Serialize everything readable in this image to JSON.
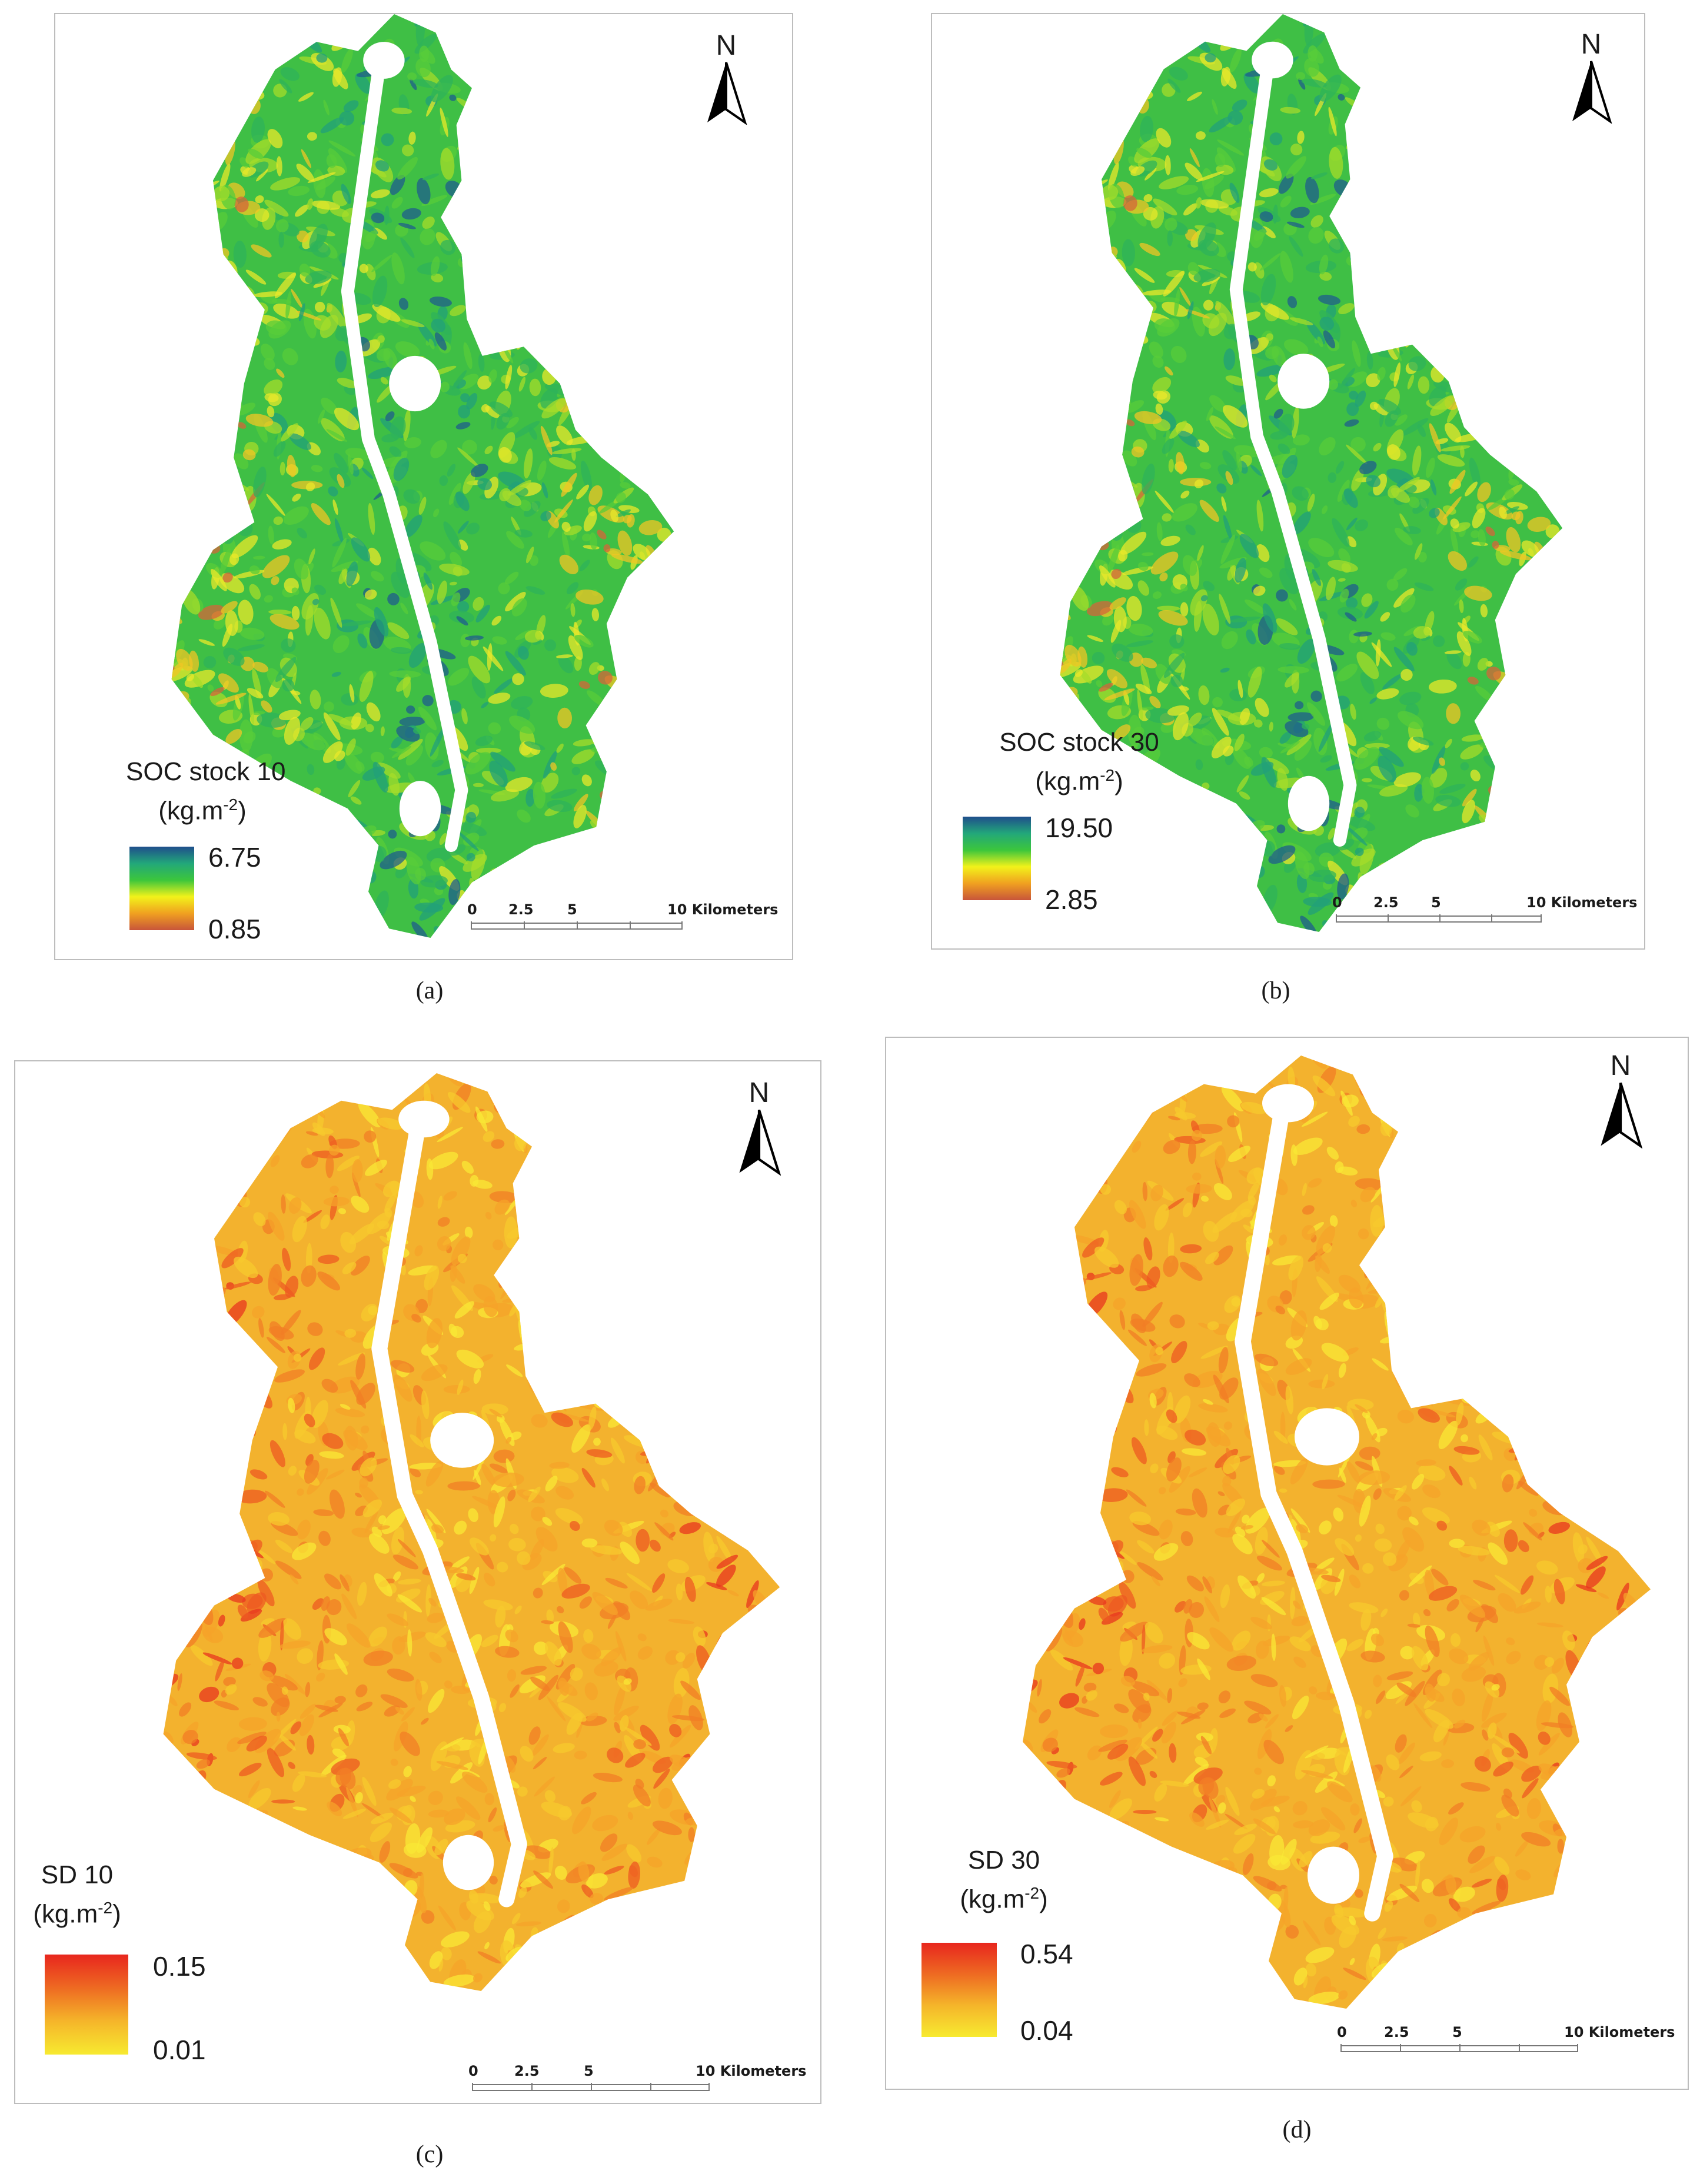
{
  "panels": [
    {
      "id": "a",
      "caption": "(a)",
      "legend": {
        "title_line1": "SOC stock 10",
        "title_unit": "(kg.m",
        "title_exp": "-2",
        "title_close": ")",
        "max": "6.75",
        "min": "0.85",
        "ramp": [
          "#1f4e8c",
          "#22a77a",
          "#3cc63c",
          "#f2f21a",
          "#f0a020",
          "#c8553a"
        ]
      },
      "north_label": "N",
      "scale": {
        "ticks": [
          "0",
          "2.5",
          "5"
        ],
        "end_label": "10 Kilometers"
      },
      "map_palette": "soc"
    },
    {
      "id": "b",
      "caption": "(b)",
      "legend": {
        "title_line1": "SOC stock 30",
        "title_unit": "(kg.m",
        "title_exp": "-2",
        "title_close": ")",
        "max": "19.50",
        "min": "2.85",
        "ramp": [
          "#1f4e8c",
          "#22a77a",
          "#3cc63c",
          "#f2f21a",
          "#f0a020",
          "#c8553a"
        ]
      },
      "north_label": "N",
      "scale": {
        "ticks": [
          "0",
          "2.5",
          "5"
        ],
        "end_label": "10 Kilometers"
      },
      "map_palette": "soc"
    },
    {
      "id": "c",
      "caption": "(c)",
      "legend": {
        "title_line1": "SD 10",
        "title_unit": "(kg.m",
        "title_exp": "-2",
        "title_close": ")",
        "max": "0.15",
        "min": "0.01",
        "ramp": [
          "#e8261e",
          "#ee6a22",
          "#f5b52a",
          "#f7ea30"
        ]
      },
      "north_label": "N",
      "scale": {
        "ticks": [
          "0",
          "2.5",
          "5"
        ],
        "end_label": "10 Kilometers"
      },
      "map_palette": "sd"
    },
    {
      "id": "d",
      "caption": "(d)",
      "legend": {
        "title_line1": "SD 30",
        "title_unit": "(kg.m",
        "title_exp": "-2",
        "title_close": ")",
        "max": "0.54",
        "min": "0.04",
        "ramp": [
          "#e8261e",
          "#ee6a22",
          "#f5b52a",
          "#f7ea30"
        ]
      },
      "north_label": "N",
      "scale": {
        "ticks": [
          "0",
          "2.5",
          "5"
        ],
        "end_label": "10 Kilometers"
      },
      "map_palette": "sd"
    }
  ]
}
